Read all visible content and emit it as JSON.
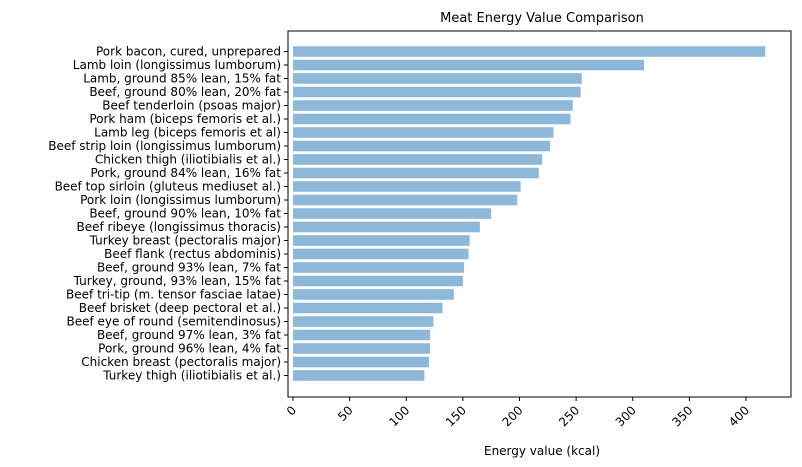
{
  "chart_data": {
    "type": "bar",
    "orientation": "horizontal",
    "title": "Meat Energy Value Comparison",
    "xlabel": "Energy value (kcal)",
    "ylabel": "",
    "xlim": [
      0,
      437
    ],
    "xticks": [
      0,
      50,
      100,
      150,
      200,
      250,
      300,
      350,
      400
    ],
    "grid": false,
    "bar_color": "#8db8d9",
    "categories": [
      "Pork bacon, cured, unprepared",
      "Lamb loin (longissimus lumborum)",
      "Lamb, ground 85% lean, 15% fat",
      "Beef, ground 80% lean, 20% fat",
      "Beef tenderloin (psoas major)",
      "Pork ham (biceps femoris et al.)",
      "Lamb leg (biceps femoris et al)",
      "Beef strip loin (longissimus lumborum)",
      "Chicken thigh (iliotibialis et al.)",
      "Pork, ground 84% lean, 16% fat",
      "Beef top sirloin (gluteus mediuset al.)",
      "Pork loin (longissimus lumborum)",
      "Beef, ground 90% lean, 10% fat",
      "Beef ribeye (longissimus thoracis)",
      "Turkey breast (pectoralis major)",
      "Beef flank (rectus abdominis)",
      "Beef, ground 93% lean, 7% fat",
      "Turkey, ground, 93% lean, 15% fat",
      "Beef tri-tip (m. tensor fasciae latae)",
      "Beef brisket (deep pectoral et al.)",
      "Beef eye of round (semitendinosus)",
      "Beef, ground 97% lean, 3% fat",
      "Pork, ground 96% lean, 4% fat",
      "Chicken breast (pectoralis major)",
      "Turkey thigh (iliotibialis et al.)"
    ],
    "values": [
      417,
      310,
      255,
      254,
      247,
      245,
      230,
      227,
      220,
      217,
      201,
      198,
      175,
      165,
      156,
      155,
      151,
      150,
      142,
      132,
      124,
      121,
      121,
      120,
      116
    ]
  }
}
